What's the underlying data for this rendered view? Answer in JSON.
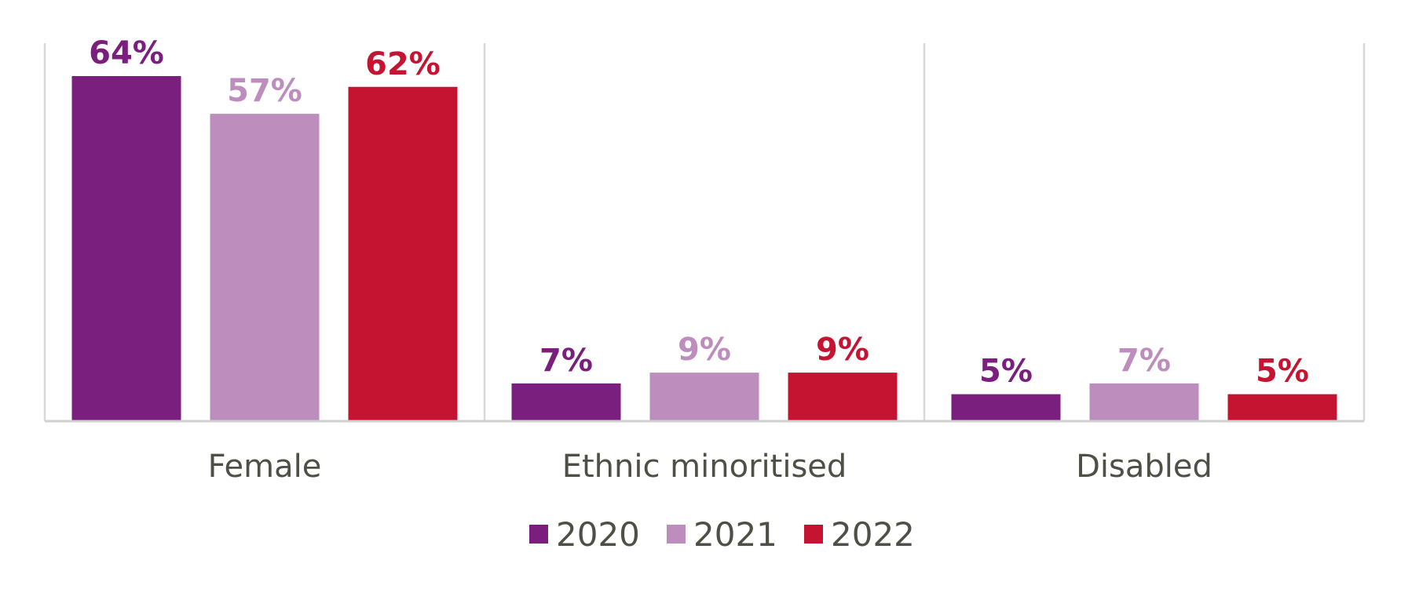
{
  "chart_data": {
    "type": "bar",
    "categories": [
      "Female",
      "Ethnic minoritised",
      "Disabled"
    ],
    "series": [
      {
        "name": "2020",
        "color": "#7a1f7e",
        "values": [
          64,
          7,
          5
        ],
        "labels": [
          "64%",
          "7%",
          "5%"
        ]
      },
      {
        "name": "2021",
        "color": "#bd8ebd",
        "values": [
          57,
          9,
          7
        ],
        "labels": [
          "57%",
          "9%",
          "7%"
        ]
      },
      {
        "name": "2022",
        "color": "#c41432",
        "values": [
          62,
          9,
          5
        ],
        "labels": [
          "62%",
          "9%",
          "5%"
        ]
      }
    ],
    "ylim": [
      0,
      70
    ],
    "value_format": "percent",
    "grid": false,
    "category_separators": true,
    "legend_position": "bottom"
  }
}
